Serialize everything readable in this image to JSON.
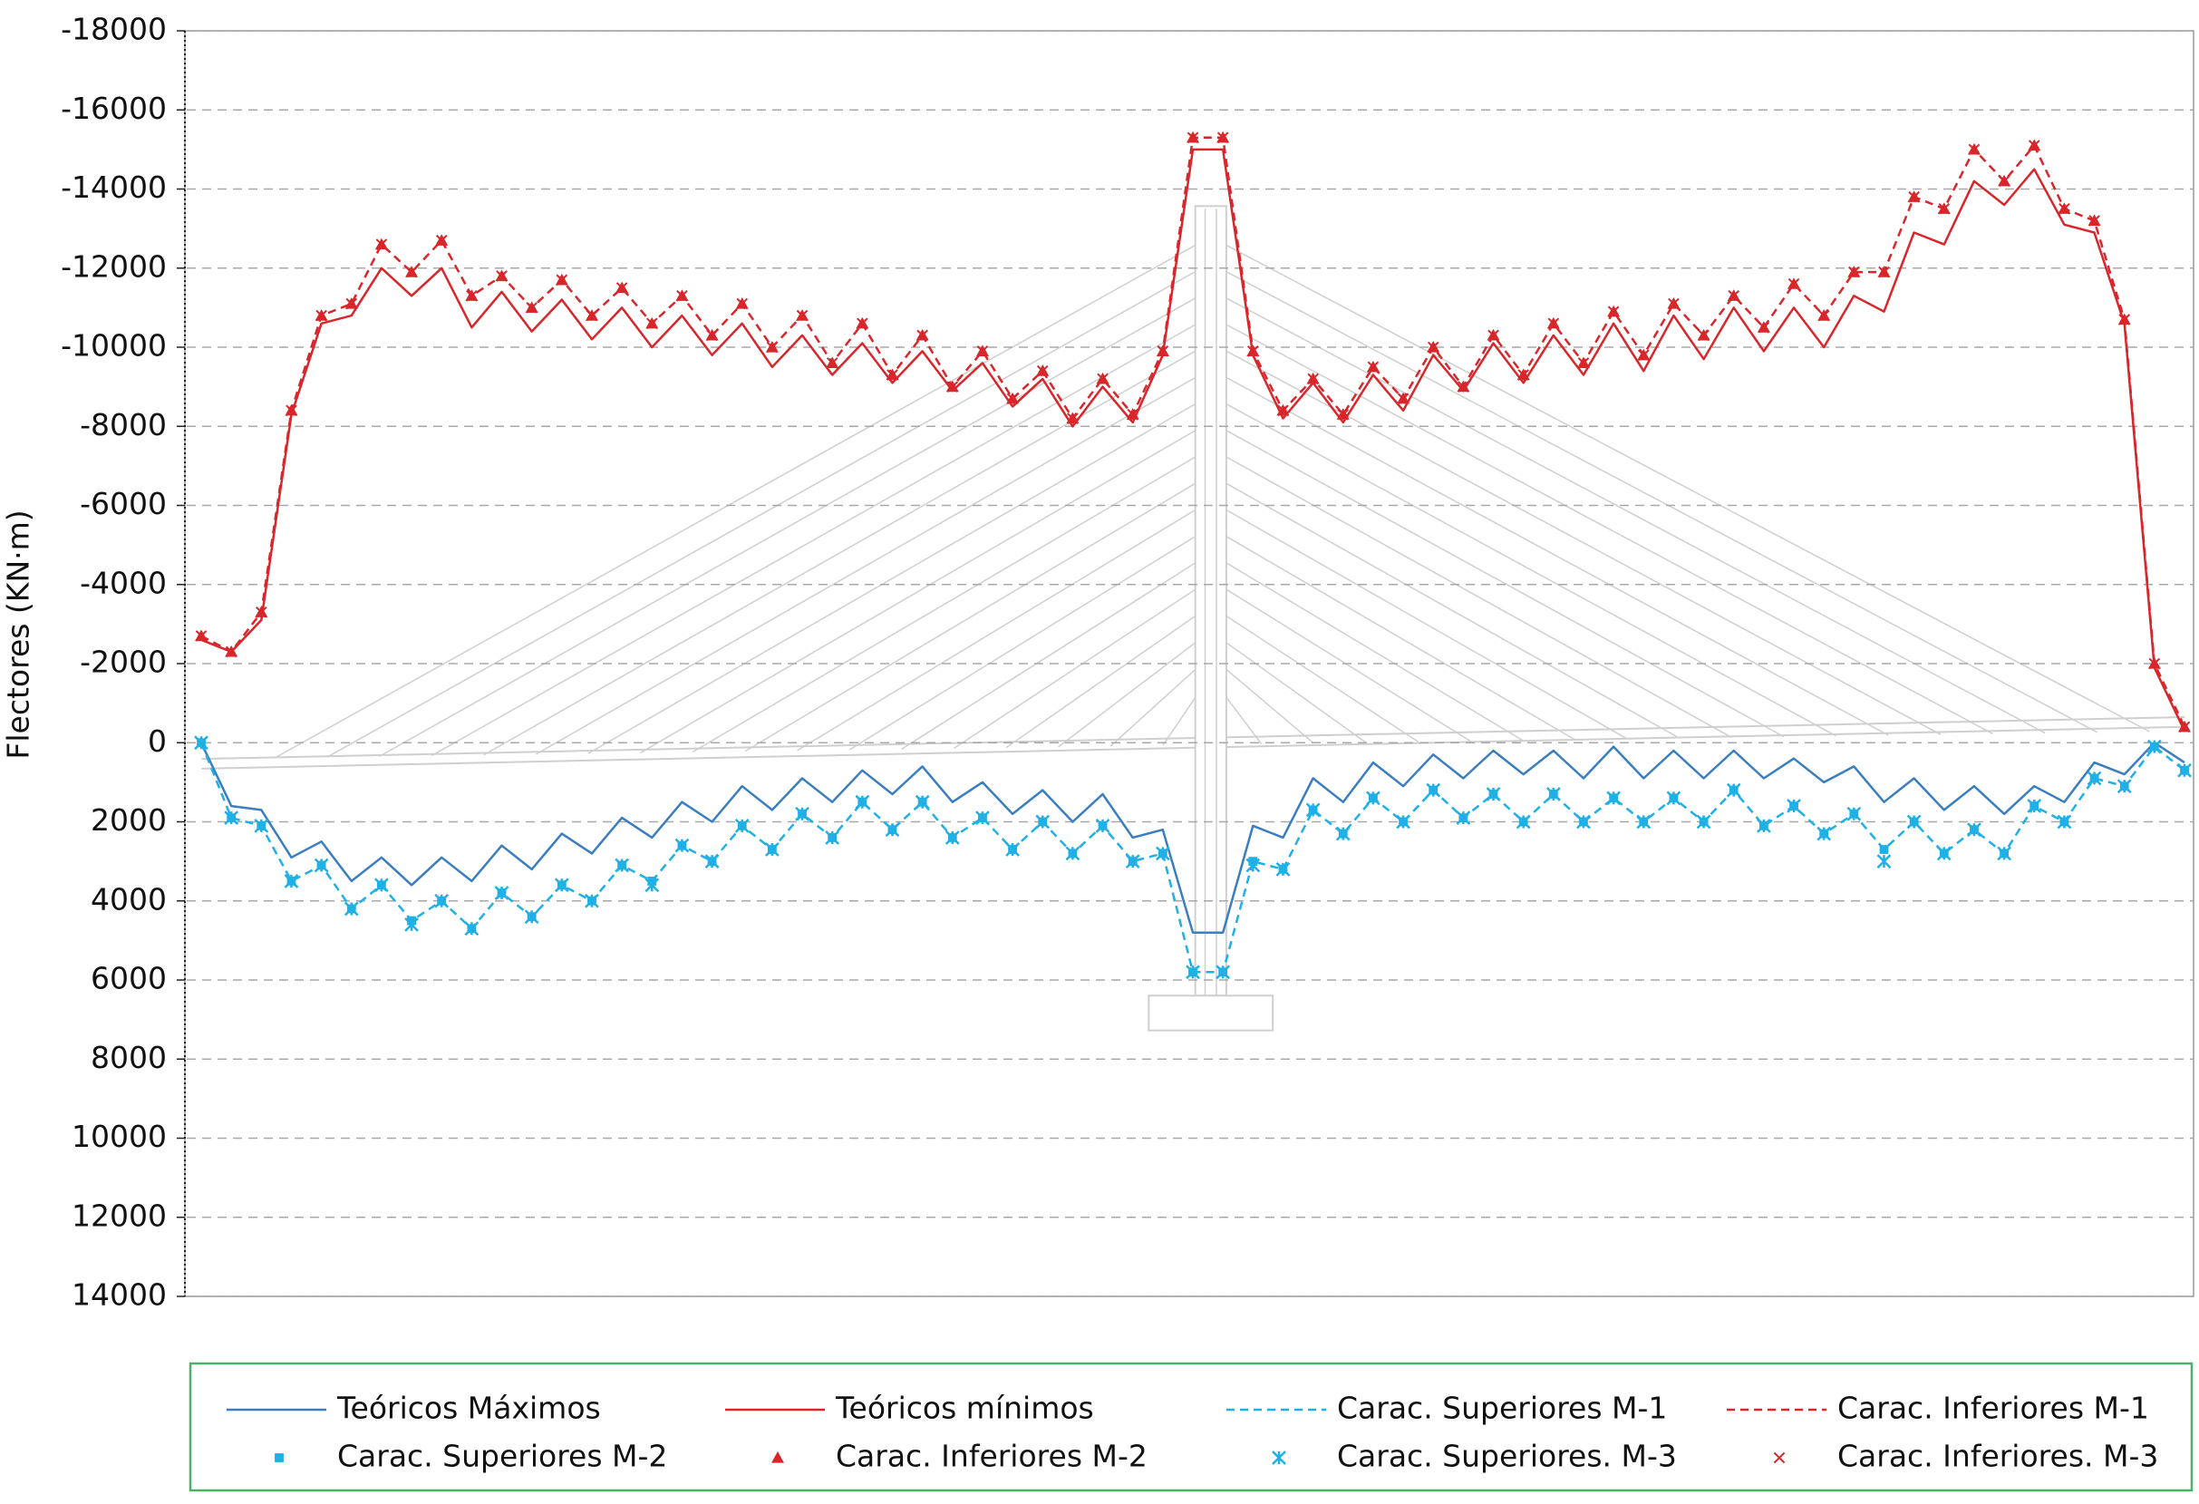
{
  "chart_data": {
    "type": "line",
    "y_label": "Flectores (KN·m)",
    "ylim": [
      -18000,
      14000
    ],
    "y_inverted": true,
    "yticks": [
      -18000,
      -16000,
      -14000,
      -12000,
      -10000,
      -8000,
      -6000,
      -4000,
      -2000,
      0,
      2000,
      4000,
      6000,
      8000,
      10000,
      12000,
      14000
    ],
    "grid": true,
    "legend": "bottom",
    "categories": [
      null,
      null,
      null,
      null,
      null,
      null,
      null,
      null,
      null,
      null,
      null,
      null,
      null,
      null,
      null,
      null,
      null,
      null,
      null,
      null,
      null,
      null,
      null,
      null,
      null,
      null,
      null,
      null,
      null,
      null,
      null,
      null,
      null,
      null,
      null,
      null,
      null,
      null,
      null,
      null,
      null,
      null,
      null,
      null,
      null,
      null,
      null,
      null,
      null,
      null,
      null,
      null,
      null,
      null,
      null,
      null,
      null,
      null,
      null,
      null,
      null,
      null,
      null,
      null,
      null,
      null,
      null
    ],
    "series": [
      {
        "name": "Teóricos Máximos",
        "color": "#3a7ebf",
        "style": "line",
        "values": [
          0,
          1600,
          1700,
          2900,
          2500,
          3500,
          2900,
          3600,
          2900,
          3500,
          2600,
          3200,
          2300,
          2800,
          1900,
          2400,
          1500,
          2000,
          1100,
          1700,
          900,
          1500,
          700,
          1300,
          600,
          1500,
          1000,
          1800,
          1200,
          2000,
          1300,
          2400,
          2200,
          4800,
          4800,
          2100,
          2400,
          900,
          1500,
          500,
          1100,
          300,
          900,
          200,
          800,
          200,
          900,
          100,
          900,
          200,
          900,
          200,
          900,
          400,
          1000,
          600,
          1500,
          900,
          1700,
          1100,
          1800,
          1100,
          1500,
          500,
          800,
          0,
          500
        ]
      },
      {
        "name": "Teóricos mínimos",
        "color": "#d9262b",
        "style": "line",
        "values": [
          -2600,
          -2300,
          -3100,
          -8300,
          -10600,
          -10800,
          -12000,
          -11300,
          -12000,
          -10500,
          -11400,
          -10400,
          -11200,
          -10200,
          -11000,
          -10000,
          -10800,
          -9800,
          -10600,
          -9500,
          -10300,
          -9300,
          -10100,
          -9100,
          -9900,
          -8900,
          -9600,
          -8500,
          -9200,
          -8000,
          -9000,
          -8100,
          -9800,
          -15000,
          -15000,
          -9800,
          -8200,
          -9100,
          -8100,
          -9300,
          -8400,
          -9800,
          -8900,
          -10100,
          -9100,
          -10300,
          -9300,
          -10600,
          -9400,
          -10800,
          -9700,
          -11000,
          -9900,
          -11000,
          -10000,
          -11300,
          -10900,
          -12900,
          -12600,
          -14200,
          -13600,
          -14500,
          -13100,
          -12900,
          -10600,
          -1900,
          -300
        ]
      },
      {
        "name": "Carac. Superiores M-1",
        "color": "#1fb0e6",
        "style": "dashed",
        "values": [
          0,
          1900,
          2100,
          3500,
          3100,
          4200,
          3600,
          4500,
          4000,
          4700,
          3800,
          4400,
          3600,
          4000,
          3100,
          3500,
          2600,
          3000,
          2100,
          2700,
          1800,
          2400,
          1500,
          2200,
          1500,
          2400,
          1900,
          2700,
          2000,
          2800,
          2100,
          3000,
          2800,
          5800,
          5800,
          3000,
          3200,
          1700,
          2300,
          1400,
          2000,
          1200,
          1900,
          1300,
          2000,
          1300,
          2000,
          1400,
          2000,
          1400,
          2000,
          1200,
          2100,
          1600,
          2300,
          1800,
          2700,
          2000,
          2800,
          2200,
          2800,
          1600,
          2000,
          900,
          1100,
          100,
          700
        ]
      },
      {
        "name": "Carac. Inferiores M-1",
        "color": "#d9262b",
        "style": "dashed",
        "values": [
          -2700,
          -2300,
          -3300,
          -8400,
          -10800,
          -11100,
          -12600,
          -11900,
          -12700,
          -11300,
          -11800,
          -11000,
          -11700,
          -10800,
          -11500,
          -10600,
          -11300,
          -10300,
          -11100,
          -10000,
          -10800,
          -9600,
          -10600,
          -9300,
          -10300,
          -9000,
          -9900,
          -8700,
          -9400,
          -8200,
          -9200,
          -8300,
          -9900,
          -15300,
          -15300,
          -9900,
          -8400,
          -9200,
          -8300,
          -9500,
          -8700,
          -10000,
          -9000,
          -10300,
          -9300,
          -10600,
          -9600,
          -10900,
          -9800,
          -11100,
          -10300,
          -11300,
          -10500,
          -11600,
          -10800,
          -11900,
          -11900,
          -13800,
          -13500,
          -15000,
          -14200,
          -15100,
          -13500,
          -13200,
          -10700,
          -2000,
          -400
        ]
      },
      {
        "name": "Carac. Superiores M-2",
        "color": "#1fb0e6",
        "style": "marker",
        "marker": "square",
        "values": [
          0,
          1900,
          2100,
          3500,
          3100,
          4200,
          3600,
          4500,
          4000,
          4700,
          3800,
          4400,
          3600,
          4000,
          3100,
          3500,
          2600,
          3000,
          2100,
          2700,
          1800,
          2400,
          1500,
          2200,
          1500,
          2400,
          1900,
          2700,
          2000,
          2800,
          2100,
          3000,
          2800,
          5800,
          5800,
          3000,
          3200,
          1700,
          2300,
          1400,
          2000,
          1200,
          1900,
          1300,
          2000,
          1300,
          2000,
          1400,
          2000,
          1400,
          2000,
          1200,
          2100,
          1600,
          2300,
          1800,
          2700,
          2000,
          2800,
          2200,
          2800,
          1600,
          2000,
          900,
          1100,
          100,
          700
        ]
      },
      {
        "name": "Carac. Inferiores M-2",
        "color": "#d9262b",
        "style": "marker",
        "marker": "triangle",
        "values": [
          -2700,
          -2300,
          -3300,
          -8400,
          -10800,
          -11100,
          -12600,
          -11900,
          -12700,
          -11300,
          -11800,
          -11000,
          -11700,
          -10800,
          -11500,
          -10600,
          -11300,
          -10300,
          -11100,
          -10000,
          -10800,
          -9600,
          -10600,
          -9300,
          -10300,
          -9000,
          -9900,
          -8700,
          -9400,
          -8200,
          -9200,
          -8300,
          -9900,
          -15300,
          -15300,
          -9900,
          -8400,
          -9200,
          -8300,
          -9500,
          -8700,
          -10000,
          -9000,
          -10300,
          -9300,
          -10600,
          -9600,
          -10900,
          -9800,
          -11100,
          -10300,
          -11300,
          -10500,
          -11600,
          -10800,
          -11900,
          -11900,
          -13800,
          -13500,
          -15000,
          -14200,
          -15100,
          -13500,
          -13200,
          -10700,
          -2000,
          -400
        ]
      },
      {
        "name": "Carac. Superiores. M-3",
        "color": "#1fb0e6",
        "style": "marker",
        "marker": "asterisk",
        "values": [
          0,
          1900,
          2100,
          3500,
          3100,
          4200,
          3600,
          4600,
          4000,
          4700,
          3800,
          4400,
          3600,
          4000,
          3100,
          3600,
          2600,
          3000,
          2100,
          2700,
          1800,
          2400,
          1500,
          2200,
          1500,
          2400,
          1900,
          2700,
          2000,
          2800,
          2100,
          3000,
          2800,
          5800,
          5800,
          3100,
          3200,
          1700,
          2300,
          1400,
          2000,
          1200,
          1900,
          1300,
          2000,
          1300,
          2000,
          1400,
          2000,
          1400,
          2000,
          1200,
          2100,
          1600,
          2300,
          1800,
          3000,
          2000,
          2800,
          2200,
          2800,
          1600,
          2000,
          900,
          1100,
          100,
          700
        ]
      },
      {
        "name": "Carac. Inferiores. M-3",
        "color": "#d9262b",
        "style": "marker",
        "marker": "x",
        "values": [
          -2700,
          -2300,
          -3300,
          -8400,
          -10800,
          -11100,
          -12600,
          -11900,
          -12700,
          -11300,
          -11800,
          -11000,
          -11700,
          -10800,
          -11500,
          -10600,
          -11300,
          -10300,
          -11100,
          -10000,
          -10800,
          -9600,
          -10600,
          -9300,
          -10300,
          -9000,
          -9900,
          -8700,
          -9400,
          -8200,
          -9200,
          -8300,
          -9900,
          -15300,
          -15300,
          -9900,
          -8400,
          -9200,
          -8300,
          -9500,
          -8700,
          -10000,
          -9000,
          -10300,
          -9300,
          -10600,
          -9600,
          -10900,
          -9800,
          -11100,
          -10300,
          -11300,
          -10500,
          -11600,
          -10800,
          -11900,
          -11900,
          -13800,
          -13500,
          -15000,
          -14200,
          -15100,
          -13500,
          -13200,
          -10700,
          -2000,
          -400
        ]
      }
    ]
  }
}
